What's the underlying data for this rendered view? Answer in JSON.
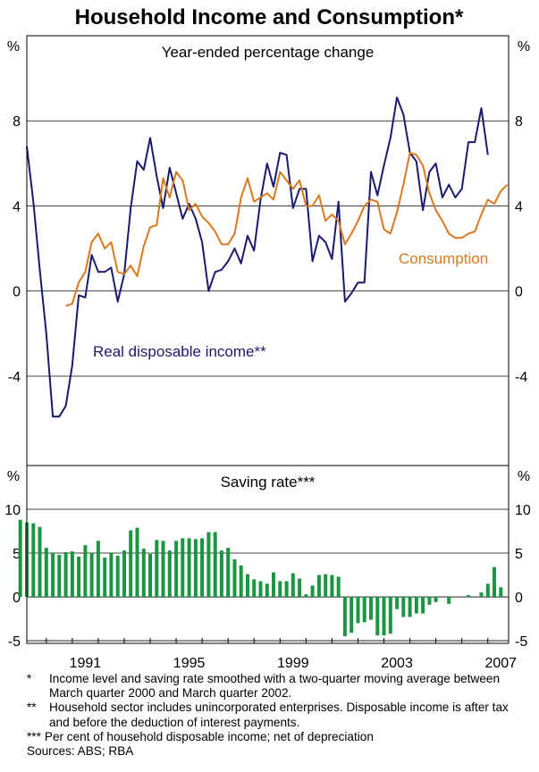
{
  "chart_data": {
    "title": "Household Income and Consumption*",
    "top_panel": {
      "type": "line",
      "subtitle": "Year-ended percentage change",
      "unit_left": "%",
      "unit_right": "%",
      "ylim": [
        -8.2,
        12
      ],
      "yticks": [
        8,
        4,
        0,
        -4
      ],
      "ytick_labels": [
        "8",
        "4",
        "0",
        "-4"
      ],
      "x_start": 1989.0,
      "x_step": 0.25,
      "series": [
        {
          "name": "Real disposable income**",
          "color": "#1a1a6e",
          "start_index": 1,
          "values": [
            6.8,
            4.2,
            1.0,
            -2.0,
            -5.9,
            -5.9,
            -5.4,
            -3.5,
            -0.2,
            -0.3,
            1.7,
            0.9,
            0.9,
            1.1,
            -0.5,
            0.8,
            3.9,
            6.1,
            5.7,
            7.2,
            5.4,
            3.9,
            5.8,
            4.6,
            3.4,
            4.1,
            3.4,
            2.3,
            0.0,
            0.9,
            1.0,
            1.4,
            2.0,
            1.3,
            2.6,
            1.9,
            4.3,
            6.0,
            4.9,
            6.5,
            6.4,
            3.9,
            4.8,
            4.8,
            1.4,
            2.6,
            2.3,
            1.5,
            4.2,
            -0.5,
            -0.1,
            0.4,
            0.4,
            5.6,
            4.5,
            5.9,
            7.2,
            9.1,
            8.3,
            6.5,
            6.1,
            3.8,
            5.6,
            6.0,
            4.4,
            5.0,
            4.4,
            4.8,
            7.0,
            7.0,
            8.6,
            6.4
          ]
        },
        {
          "name": "Consumption",
          "color": "#d97a1f",
          "start_index": 7,
          "values": [
            -0.7,
            -0.6,
            0.4,
            0.9,
            2.3,
            2.7,
            2.0,
            2.3,
            0.9,
            0.8,
            1.2,
            0.7,
            2.1,
            3.0,
            3.1,
            5.3,
            4.4,
            5.6,
            5.2,
            3.8,
            4.1,
            3.5,
            3.2,
            2.8,
            2.2,
            2.2,
            2.7,
            4.4,
            5.3,
            4.2,
            4.4,
            4.6,
            4.3,
            5.6,
            5.2,
            4.8,
            5.2,
            4.0,
            4.0,
            4.5,
            3.3,
            3.6,
            3.3,
            2.2,
            2.7,
            3.3,
            4.0,
            4.3,
            4.2,
            2.9,
            2.7,
            3.7,
            5.0,
            6.5,
            6.4,
            5.9,
            4.6,
            3.8,
            3.3,
            2.7,
            2.5,
            2.5,
            2.7,
            2.8,
            3.6,
            4.3,
            4.1,
            4.7,
            5.0
          ]
        }
      ],
      "annotations": [
        {
          "text": "Consumption",
          "series": "Consumption"
        },
        {
          "text": "Real disposable income**",
          "series": "Real disposable income**"
        }
      ]
    },
    "bottom_panel": {
      "type": "bar",
      "subtitle": "Saving rate***",
      "unit_left": "%",
      "unit_right": "%",
      "ylim": [
        -5.3,
        15
      ],
      "yticks": [
        10,
        5,
        0,
        -5
      ],
      "ytick_labels": [
        "10",
        "5",
        "0",
        "-5"
      ],
      "x_start": 1989.0,
      "x_step": 0.25,
      "bar_color": "#1a9641",
      "values": [
        8.8,
        8.5,
        8.4,
        8.0,
        5.6,
        5.0,
        4.8,
        5.1,
        5.2,
        4.6,
        5.9,
        5.0,
        6.4,
        4.5,
        5.0,
        4.7,
        5.3,
        7.6,
        7.9,
        5.5,
        4.9,
        6.5,
        6.4,
        5.3,
        6.4,
        6.7,
        6.7,
        6.6,
        6.7,
        7.4,
        7.4,
        5.3,
        5.6,
        4.3,
        3.6,
        2.6,
        2.0,
        1.8,
        1.5,
        2.8,
        1.8,
        1.8,
        2.7,
        2.1,
        0.3,
        1.3,
        2.5,
        2.6,
        2.5,
        2.3,
        -4.5,
        -4.1,
        -3.0,
        -2.9,
        -2.6,
        -4.4,
        -4.4,
        -4.2,
        -1.4,
        -2.3,
        -2.3,
        -1.9,
        -1.9,
        -0.9,
        -0.6,
        0.0,
        -0.8,
        0.0,
        0.0,
        0.2,
        0.0,
        0.5,
        1.5,
        3.4,
        1.1
      ]
    },
    "x_axis": {
      "tick_labels": [
        "1991",
        "1995",
        "1999",
        "2003",
        "2007"
      ],
      "tick_years": [
        1991,
        1995,
        1999,
        2003,
        2007
      ],
      "range": [
        1989.25,
        2007.8
      ]
    }
  },
  "footnotes": [
    {
      "mark": "*",
      "text": "Income level and saving rate smoothed with a two-quarter moving average between March quarter 2000 and March quarter 2002."
    },
    {
      "mark": "**",
      "text": "Household sector includes unincorporated enterprises. Disposable income is after tax and before the deduction of interest payments."
    },
    {
      "mark": "***",
      "text": "Per cent of household disposable income; net of depreciation"
    }
  ],
  "sources": "Sources: ABS; RBA"
}
